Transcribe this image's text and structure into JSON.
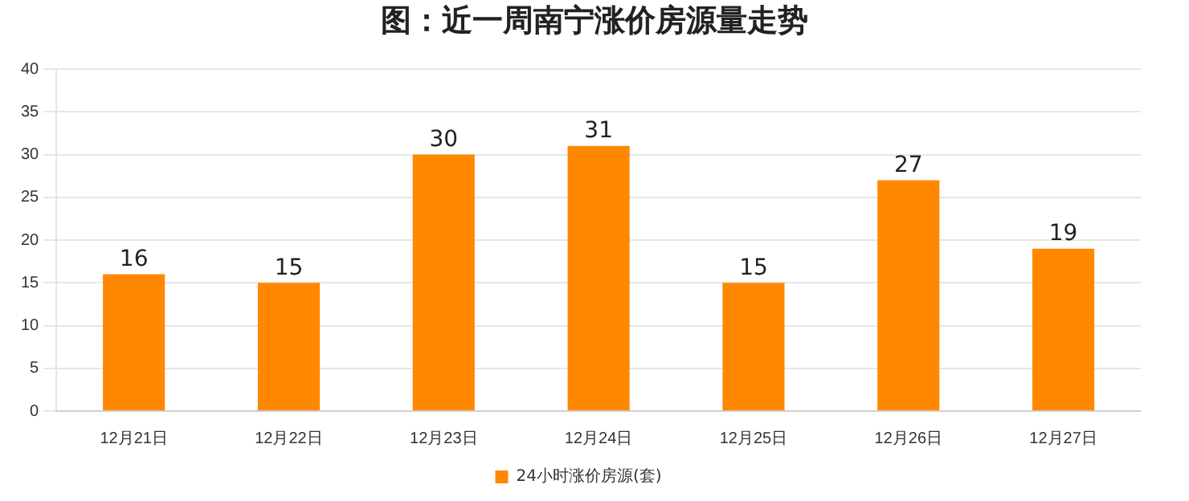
{
  "chart_data": {
    "type": "bar",
    "title": "图：近一周南宁涨价房源量走势",
    "categories": [
      "12月21日",
      "12月22日",
      "12月23日",
      "12月24日",
      "12月25日",
      "12月26日",
      "12月27日"
    ],
    "series": [
      {
        "name": "24小时涨价房源(套)",
        "color": "#ff8800",
        "values": [
          16,
          15,
          30,
          31,
          15,
          27,
          19
        ]
      }
    ],
    "ylim": [
      0,
      40
    ],
    "yticks": [
      0,
      5,
      10,
      15,
      20,
      25,
      30,
      35,
      40
    ],
    "grid": "y",
    "legend": "bottom",
    "data_labels": true
  }
}
